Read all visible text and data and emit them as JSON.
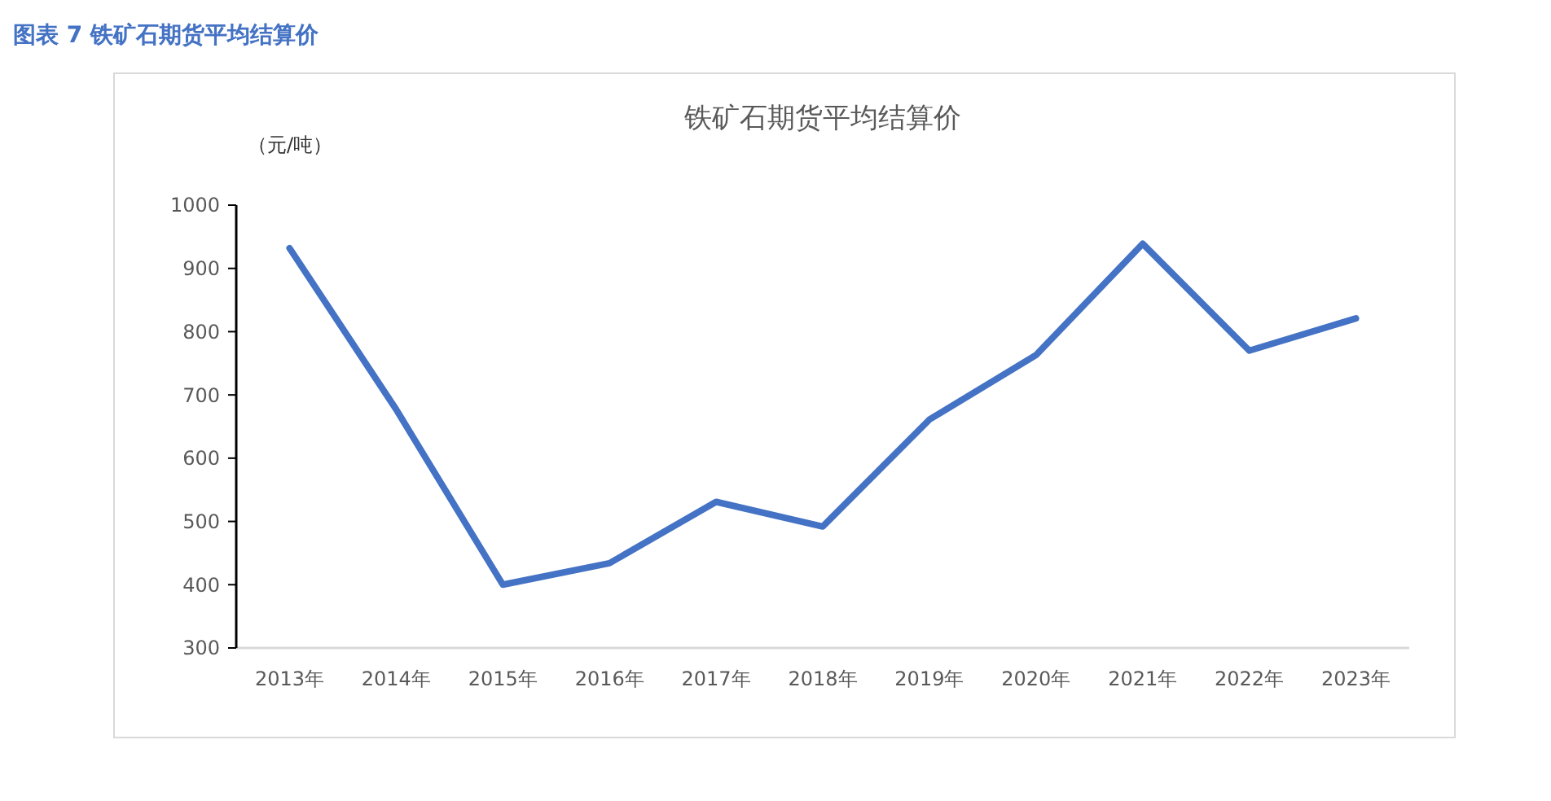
{
  "chart_data": {
    "type": "line",
    "title": "铁矿石期货平均结算价",
    "subtitle": "图表  7  铁矿石期货平均结算价",
    "ylabel": "（元/吨）",
    "categories": [
      "2013年",
      "2014年",
      "2015年",
      "2016年",
      "2017年",
      "2018年",
      "2019年",
      "2020年",
      "2021年",
      "2022年",
      "2023年"
    ],
    "series": [
      {
        "color": "#4472c4",
        "values": [
          932,
          677,
          400,
          434,
          531,
          492,
          661,
          763,
          939,
          770,
          821
        ]
      }
    ],
    "ylim": [
      300,
      1000
    ],
    "yticks": [
      300,
      400,
      500,
      600,
      700,
      800,
      900,
      1000
    ],
    "grid": false,
    "marker": "none",
    "line_style": "solid"
  }
}
